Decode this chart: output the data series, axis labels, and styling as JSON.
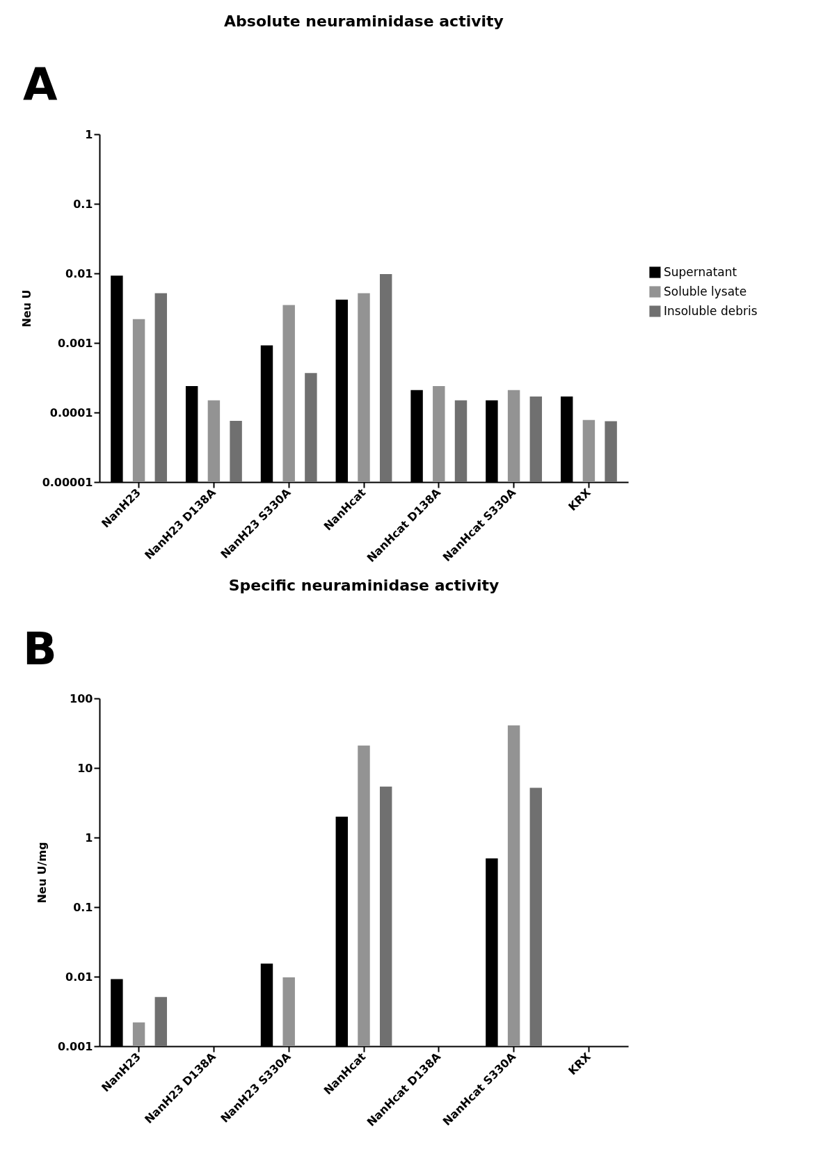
{
  "chart_data": [
    {
      "type": "bar",
      "title": "Absolute neuraminidase activity",
      "ylabel": "Neu U",
      "annotations": [
        "A"
      ],
      "categories": [
        "NanH23",
        "NanH23 D138A",
        "NanH23 S330A",
        "NanHcat",
        "NanHcat D138A",
        "NanHcat S330A",
        "KRX"
      ],
      "series": [
        {
          "name": "Supernatant",
          "color": "#000000",
          "values": [
            0.0093,
            0.00024,
            0.00092,
            0.0042,
            0.00021,
            0.00015,
            0.00017
          ]
        },
        {
          "name": "Soluble lysate",
          "color": "#939393",
          "values": [
            0.0022,
            0.00015,
            0.0035,
            0.0052,
            0.00024,
            0.00021,
            7.8e-05
          ]
        },
        {
          "name": "Insoluble debris",
          "color": "#707070",
          "values": [
            0.0052,
            7.6e-05,
            0.00037,
            0.0098,
            0.00015,
            0.00017,
            7.5e-05
          ]
        }
      ],
      "log": true,
      "ylim": [
        1e-05,
        1
      ],
      "yticks": [
        {
          "value": 1e-05,
          "label": "0.00001"
        },
        {
          "value": 0.0001,
          "label": "0.0001"
        },
        {
          "value": 0.001,
          "label": "0.001"
        },
        {
          "value": 0.01,
          "label": "0.01"
        },
        {
          "value": 0.1,
          "label": "0.1"
        },
        {
          "value": 1,
          "label": "1"
        }
      ],
      "grid": false,
      "legend": "right"
    },
    {
      "type": "bar",
      "title": "Specific neuraminidase activity",
      "ylabel": "Neu U/mg",
      "annotations": [
        "B"
      ],
      "categories": [
        "NanH23",
        "NanH23 D138A",
        "NanH23 S330A",
        "NanHcat",
        "NanHcat D138A",
        "NanHcat S330A",
        "KRX"
      ],
      "series": [
        {
          "name": "Supernatant",
          "color": "#000000",
          "values": [
            0.0092,
            null,
            0.0154,
            2.0,
            null,
            0.5,
            null
          ]
        },
        {
          "name": "Soluble lysate",
          "color": "#939393",
          "values": [
            0.0022,
            null,
            0.0098,
            21,
            null,
            41,
            null
          ]
        },
        {
          "name": "Insoluble debris",
          "color": "#707070",
          "values": [
            0.0051,
            null,
            null,
            5.4,
            null,
            5.2,
            null
          ]
        }
      ],
      "log": true,
      "ylim": [
        0.001,
        100
      ],
      "yticks": [
        {
          "value": 0.001,
          "label": "0.001"
        },
        {
          "value": 0.01,
          "label": "0.01"
        },
        {
          "value": 0.1,
          "label": "0.1"
        },
        {
          "value": 1,
          "label": "1"
        },
        {
          "value": 10,
          "label": "10"
        },
        {
          "value": 100,
          "label": "100"
        }
      ],
      "grid": false,
      "legend": "right"
    }
  ]
}
